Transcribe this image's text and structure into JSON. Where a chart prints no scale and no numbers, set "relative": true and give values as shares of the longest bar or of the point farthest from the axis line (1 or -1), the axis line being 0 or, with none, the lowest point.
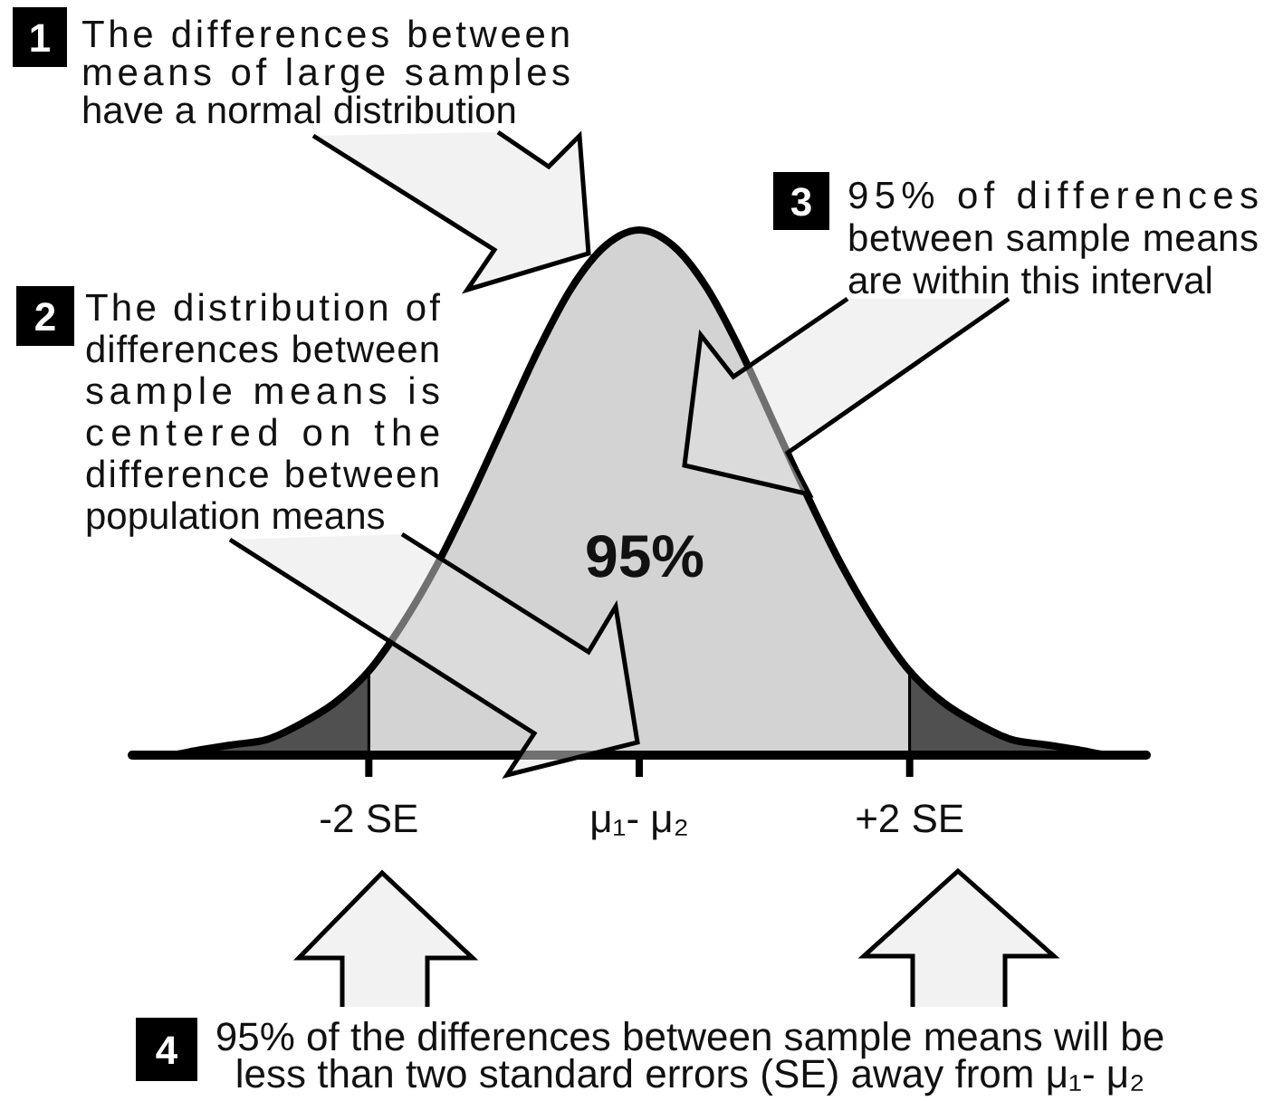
{
  "chart_data": {
    "type": "area",
    "relative": true,
    "x": [
      -3.75,
      -3.5,
      -3.25,
      -3,
      -2.75,
      -2.5,
      -2.25,
      -2,
      -1.75,
      -1.5,
      -1.25,
      -1,
      -0.75,
      -0.5,
      -0.25,
      0,
      0.25,
      0.5,
      0.75,
      1,
      1.25,
      1.5,
      1.75,
      2,
      2.25,
      2.5,
      2.75,
      3,
      3.25,
      3.5,
      3.75
    ],
    "xlim": [
      -3.75,
      3.75
    ],
    "xticks": [
      {
        "value": -2,
        "label": "-2 SE"
      },
      {
        "value": 0,
        "label": "μ₁- μ₂"
      },
      {
        "value": 2,
        "label": "+2 SE"
      }
    ],
    "series": [
      {
        "color": "#d3d3d3",
        "x": [
          -2,
          -1.75,
          -1.5,
          -1.25,
          -1,
          -0.75,
          -0.5,
          -0.25,
          0,
          0.25,
          0.5,
          0.75,
          1,
          1.25,
          1.5,
          1.75,
          2
        ],
        "values": [
          0.16,
          0.25,
          0.36,
          0.49,
          0.63,
          0.77,
          0.89,
          0.97,
          1,
          0.97,
          0.89,
          0.77,
          0.63,
          0.49,
          0.36,
          0.25,
          0.16
        ]
      },
      {
        "color": "#505050",
        "values": [
          0,
          0,
          0.01,
          0.02,
          0.03,
          0.06,
          0.1,
          0.16,
          null,
          null,
          null,
          null,
          null,
          null,
          null,
          null,
          null,
          null,
          null,
          null,
          null,
          null,
          null,
          0.16,
          0.1,
          0.06,
          0.03,
          0.02,
          0.01,
          0,
          0
        ]
      },
      {
        "type": "line",
        "color": "#000000",
        "values": [
          0,
          0,
          0.01,
          0.02,
          0.03,
          0.06,
          0.1,
          0.16,
          0.25,
          0.36,
          0.49,
          0.63,
          0.77,
          0.89,
          0.97,
          1,
          0.97,
          0.89,
          0.77,
          0.63,
          0.49,
          0.36,
          0.25,
          0.16,
          0.1,
          0.06,
          0.03,
          0.02,
          0.01,
          0,
          0
        ]
      }
    ],
    "annotations": [
      "1",
      "The differences between means of large samples have a normal distribution",
      "2",
      "The distribution of differences between sample means is centered on the difference between population means",
      "3",
      "95% of differences between sample means are within this interval",
      "95%",
      "4",
      "95% of the differences between sample means will be less than two standard errors (SE) away from μ₁- μ₂"
    ]
  }
}
